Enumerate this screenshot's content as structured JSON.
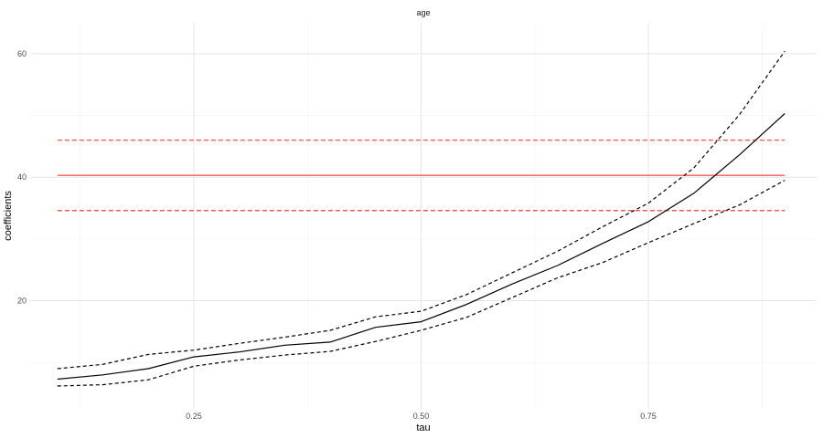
{
  "chart_data": {
    "type": "line",
    "title": "age",
    "xlabel": "tau",
    "ylabel": "coefficients",
    "xlim": [
      0.07,
      0.935
    ],
    "ylim": [
      2.5,
      65
    ],
    "x_ticks": [
      0.25,
      0.5,
      0.75
    ],
    "x_tick_labels": [
      "0.25",
      "0.50",
      "0.75"
    ],
    "y_ticks": [
      20,
      40,
      60
    ],
    "y_tick_labels": [
      "20",
      "40",
      "60"
    ],
    "grid": true,
    "legend": "none",
    "x": [
      0.1,
      0.15,
      0.2,
      0.25,
      0.3,
      0.35,
      0.4,
      0.45,
      0.5,
      0.55,
      0.6,
      0.65,
      0.7,
      0.75,
      0.8,
      0.85,
      0.9
    ],
    "series": [
      {
        "role": "quantile-estimate",
        "color": "#000000",
        "dash": "solid",
        "values": [
          7.3,
          8.0,
          9.0,
          10.9,
          11.7,
          12.8,
          13.3,
          15.7,
          16.6,
          19.4,
          22.7,
          25.7,
          29.3,
          32.8,
          37.4,
          43.6,
          50.3
        ]
      },
      {
        "role": "quantile-upper-bound",
        "color": "#000000",
        "dash": "dashed",
        "values": [
          9.0,
          9.7,
          11.3,
          12.0,
          13.1,
          14.1,
          15.2,
          17.4,
          18.3,
          21.0,
          24.5,
          28.0,
          32.0,
          35.8,
          41.5,
          50.1,
          60.4
        ]
      },
      {
        "role": "quantile-lower-bound",
        "color": "#000000",
        "dash": "dashed",
        "values": [
          6.2,
          6.4,
          7.2,
          9.4,
          10.4,
          11.2,
          11.8,
          13.4,
          15.2,
          17.3,
          20.5,
          23.7,
          26.2,
          29.4,
          32.5,
          35.5,
          39.5
        ]
      }
    ],
    "reference_lines": [
      {
        "role": "ols-estimate",
        "color": "#ff5555",
        "dash": "solid",
        "y": 40.3,
        "x_start": 0.1,
        "x_end": 0.9
      },
      {
        "role": "ols-upper-bound",
        "color": "#ff5555",
        "dash": "dashed",
        "y": 46.0,
        "x_start": 0.1,
        "x_end": 0.9
      },
      {
        "role": "ols-lower-bound",
        "color": "#ff5555",
        "dash": "dashed",
        "y": 34.6,
        "x_start": 0.1,
        "x_end": 0.9
      }
    ]
  }
}
